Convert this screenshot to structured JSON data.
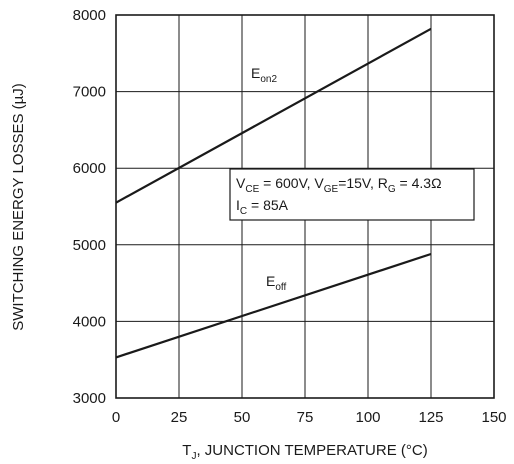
{
  "chart_data": {
    "type": "line",
    "xlabel_prefix": "T",
    "xlabel_sub": "J",
    "xlabel_rest": ", JUNCTION TEMPERATURE (°C)",
    "ylabel": "SWITCHING ENERGY LOSSES (µJ)",
    "xlim": [
      0,
      150
    ],
    "ylim": [
      3000,
      8000
    ],
    "x_ticks": [
      0,
      25,
      50,
      75,
      100,
      125,
      150
    ],
    "y_ticks": [
      3000,
      4000,
      5000,
      6000,
      7000,
      8000
    ],
    "grid": true,
    "series": [
      {
        "name": "Eon2",
        "label_main": "E",
        "label_sub": "on2",
        "x": [
          0,
          125
        ],
        "y": [
          5550,
          7820
        ]
      },
      {
        "name": "Eoff",
        "label_main": "E",
        "label_sub": "off",
        "x": [
          0,
          125
        ],
        "y": [
          3530,
          4880
        ]
      }
    ],
    "annotation": {
      "line1": [
        {
          "t": "V",
          "sub": false
        },
        {
          "t": "CE",
          "sub": true
        },
        {
          "t": " = 600V, V",
          "sub": false
        },
        {
          "t": "GE",
          "sub": true
        },
        {
          "t": "=15V, R",
          "sub": false
        },
        {
          "t": "G",
          "sub": true
        },
        {
          "t": " = 4.3Ω",
          "sub": false
        }
      ],
      "line2": [
        {
          "t": "I",
          "sub": false
        },
        {
          "t": "C",
          "sub": true
        },
        {
          "t": " = 85A",
          "sub": false
        }
      ]
    }
  }
}
